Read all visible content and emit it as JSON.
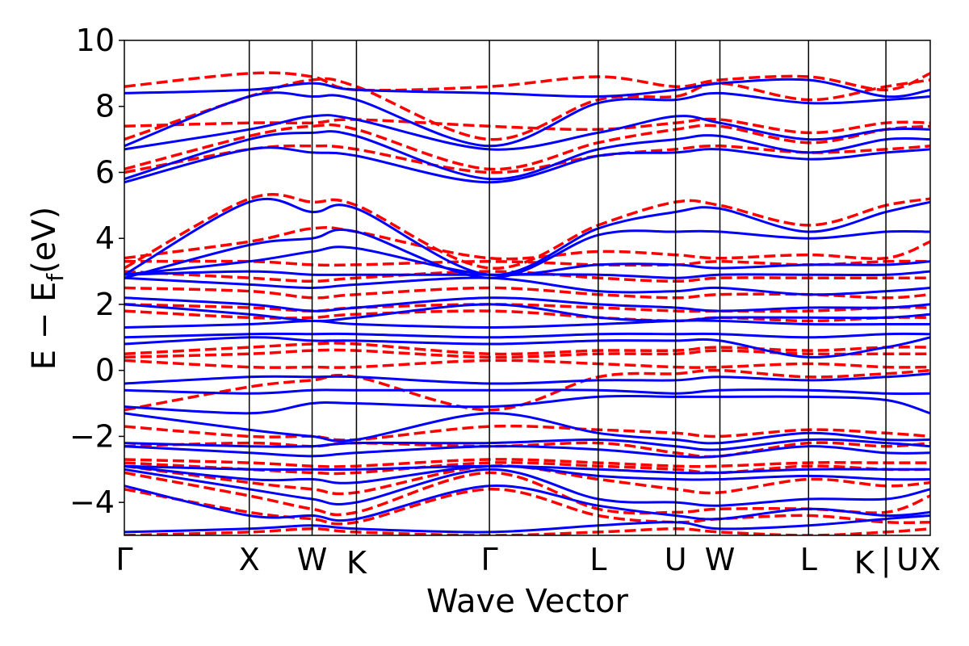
{
  "chart_data": {
    "type": "line",
    "title": "",
    "xlabel": "Wave Vector",
    "ylabel": "E − E",
    "ylabel_subscript": "f",
    "ylabel_unit": "(eV)",
    "ylim": [
      -5,
      10
    ],
    "yticks": [
      10,
      8,
      6,
      4,
      2,
      0,
      -2,
      -4
    ],
    "ytick_labels": [
      "10",
      "8",
      "6",
      "4",
      "2",
      "0",
      "−2",
      "−4"
    ],
    "kpoints": [
      {
        "label": "Γ",
        "x": 0.0
      },
      {
        "label": "X",
        "x": 0.155
      },
      {
        "label": "W",
        "x": 0.233
      },
      {
        "label": "K",
        "x": 0.288
      },
      {
        "label": "Γ",
        "x": 0.453
      },
      {
        "label": "L",
        "x": 0.588
      },
      {
        "label": "U",
        "x": 0.684
      },
      {
        "label": "W",
        "x": 0.739
      },
      {
        "label": "L",
        "x": 0.849
      },
      {
        "label": "K | U",
        "x": 0.945
      },
      {
        "label": "X",
        "x": 1.0
      }
    ],
    "xtick_labels": [
      "Γ",
      "X",
      "W",
      "K",
      "Γ",
      "L",
      "U",
      "W",
      "L",
      "K",
      "|",
      "U",
      "X"
    ],
    "series": [
      {
        "style": "dashed",
        "color": "#ff0000",
        "bands": [
          [
            -5.0,
            -4.9,
            -4.8,
            -4.9,
            -5.0,
            -4.9,
            -4.8,
            -4.9,
            -5.0,
            -4.9,
            -4.8
          ],
          [
            -3.6,
            -4.3,
            -4.5,
            -4.6,
            -3.6,
            -4.4,
            -4.6,
            -4.5,
            -4.4,
            -4.6,
            -4.6
          ],
          [
            -3.1,
            -3.8,
            -4.2,
            -4.3,
            -3.1,
            -4.2,
            -4.3,
            -4.2,
            -4.2,
            -4.3,
            -3.8
          ],
          [
            -2.9,
            -3.4,
            -3.6,
            -3.7,
            -2.9,
            -3.3,
            -3.6,
            -3.7,
            -3.3,
            -3.5,
            -3.4
          ],
          [
            -2.8,
            -3.0,
            -3.1,
            -3.1,
            -2.8,
            -2.9,
            -3.0,
            -3.1,
            -2.9,
            -3.0,
            -3.0
          ],
          [
            -2.7,
            -2.8,
            -2.9,
            -2.9,
            -2.7,
            -2.8,
            -2.9,
            -2.9,
            -2.8,
            -2.8,
            -2.8
          ],
          [
            -2.3,
            -2.2,
            -2.3,
            -2.2,
            -2.3,
            -2.2,
            -2.5,
            -2.6,
            -2.2,
            -2.3,
            -2.2
          ],
          [
            -1.7,
            -2.0,
            -2.0,
            -2.1,
            -1.7,
            -1.8,
            -1.9,
            -2.0,
            -1.8,
            -1.9,
            -2.0
          ],
          [
            -1.2,
            -0.5,
            -0.3,
            -0.2,
            -1.2,
            -0.2,
            -0.1,
            0.0,
            -0.2,
            -0.1,
            0.0
          ],
          [
            0.3,
            0.1,
            0.1,
            0.1,
            0.3,
            0.2,
            0.1,
            0.1,
            0.2,
            0.1,
            0.1
          ],
          [
            0.4,
            0.5,
            0.6,
            0.6,
            0.4,
            0.5,
            0.5,
            0.6,
            0.5,
            0.5,
            0.5
          ],
          [
            0.5,
            0.7,
            0.8,
            0.8,
            0.5,
            0.6,
            0.6,
            0.7,
            0.6,
            0.7,
            0.7
          ],
          [
            1.8,
            1.6,
            1.6,
            1.7,
            1.8,
            1.6,
            1.5,
            1.6,
            1.5,
            1.6,
            1.6
          ],
          [
            2.0,
            1.9,
            1.8,
            1.9,
            2.0,
            1.9,
            1.8,
            1.8,
            1.8,
            1.9,
            1.9
          ],
          [
            2.5,
            2.4,
            2.2,
            2.3,
            2.5,
            2.3,
            2.2,
            2.3,
            2.3,
            2.2,
            2.3
          ],
          [
            3.0,
            2.8,
            2.7,
            2.8,
            3.0,
            2.8,
            2.7,
            2.8,
            2.8,
            2.8,
            2.8
          ],
          [
            3.3,
            3.3,
            3.2,
            3.2,
            3.3,
            3.2,
            3.2,
            3.3,
            3.2,
            3.3,
            3.3
          ],
          [
            3.4,
            3.9,
            4.3,
            4.2,
            3.4,
            3.6,
            3.5,
            3.4,
            3.5,
            3.4,
            3.9
          ],
          [
            3.1,
            5.2,
            5.1,
            5.0,
            3.1,
            4.4,
            5.1,
            5.0,
            4.4,
            5.0,
            5.2
          ],
          [
            6.0,
            6.7,
            6.8,
            6.7,
            6.0,
            6.5,
            6.7,
            6.8,
            6.6,
            6.7,
            6.8
          ],
          [
            6.1,
            7.1,
            7.4,
            7.3,
            6.1,
            6.9,
            7.3,
            7.4,
            6.9,
            7.3,
            7.4
          ],
          [
            7.4,
            7.5,
            7.5,
            7.6,
            7.4,
            7.3,
            7.5,
            7.6,
            7.2,
            7.5,
            7.5
          ],
          [
            7.0,
            8.3,
            8.8,
            8.6,
            7.0,
            8.2,
            8.3,
            8.7,
            8.2,
            8.6,
            8.8
          ],
          [
            8.6,
            9.0,
            8.9,
            8.5,
            8.6,
            8.9,
            8.6,
            8.8,
            8.9,
            8.5,
            9.0
          ]
        ]
      },
      {
        "style": "solid",
        "color": "#0000ff",
        "bands": [
          [
            -4.9,
            -4.8,
            -4.7,
            -4.8,
            -4.9,
            -4.7,
            -4.6,
            -4.8,
            -4.7,
            -4.5,
            -4.4
          ],
          [
            -3.5,
            -4.4,
            -4.4,
            -4.5,
            -3.5,
            -4.1,
            -4.4,
            -4.5,
            -4.2,
            -4.4,
            -4.3
          ],
          [
            -3.0,
            -3.6,
            -3.9,
            -4.0,
            -3.0,
            -3.9,
            -4.0,
            -4.1,
            -3.9,
            -3.9,
            -3.6
          ],
          [
            -2.9,
            -3.3,
            -3.3,
            -3.4,
            -2.9,
            -3.2,
            -3.3,
            -3.3,
            -3.2,
            -3.3,
            -3.3
          ],
          [
            -2.9,
            -3.0,
            -3.0,
            -3.0,
            -2.9,
            -3.0,
            -3.1,
            -3.1,
            -3.0,
            -3.0,
            -3.0
          ],
          [
            -2.3,
            -2.5,
            -2.6,
            -2.5,
            -2.3,
            -2.4,
            -2.6,
            -2.6,
            -2.3,
            -2.5,
            -2.5
          ],
          [
            -2.2,
            -2.3,
            -2.3,
            -2.2,
            -2.2,
            -2.1,
            -2.3,
            -2.4,
            -2.1,
            -2.2,
            -2.3
          ],
          [
            -1.3,
            -1.8,
            -2.0,
            -2.1,
            -1.3,
            -1.9,
            -2.1,
            -2.2,
            -1.9,
            -2.1,
            -2.1
          ],
          [
            -1.1,
            -1.3,
            -1.0,
            -1.0,
            -1.1,
            -0.8,
            -0.8,
            -0.8,
            -0.8,
            -0.9,
            -1.3
          ],
          [
            -0.6,
            -0.7,
            -0.6,
            -0.6,
            -0.6,
            -0.6,
            -0.7,
            -0.6,
            -0.6,
            -0.7,
            -0.7
          ],
          [
            -0.4,
            -0.2,
            -0.2,
            -0.2,
            -0.4,
            -0.3,
            -0.3,
            -0.2,
            -0.3,
            -0.2,
            -0.1
          ],
          [
            0.8,
            1.0,
            0.9,
            0.9,
            0.8,
            0.9,
            0.9,
            0.9,
            0.4,
            0.7,
            1.0
          ],
          [
            1.0,
            1.1,
            1.1,
            1.1,
            1.0,
            1.1,
            1.1,
            1.1,
            1.0,
            1.1,
            1.1
          ],
          [
            1.3,
            1.4,
            1.5,
            1.4,
            1.3,
            1.4,
            1.5,
            1.5,
            1.4,
            1.4,
            1.4
          ],
          [
            2.0,
            1.7,
            1.5,
            1.6,
            2.0,
            1.6,
            1.5,
            1.6,
            1.6,
            1.6,
            1.7
          ],
          [
            2.2,
            2.0,
            1.8,
            1.9,
            2.2,
            2.0,
            1.9,
            1.8,
            1.9,
            1.9,
            2.0
          ],
          [
            2.8,
            2.6,
            2.5,
            2.6,
            2.8,
            2.4,
            2.4,
            2.5,
            2.3,
            2.4,
            2.5
          ],
          [
            2.9,
            3.0,
            2.9,
            2.9,
            2.9,
            2.9,
            2.8,
            2.9,
            2.9,
            2.9,
            3.0
          ],
          [
            2.9,
            3.3,
            3.6,
            3.7,
            2.9,
            3.2,
            3.2,
            3.1,
            3.2,
            3.2,
            3.3
          ],
          [
            2.8,
            3.8,
            4.0,
            4.2,
            2.8,
            4.1,
            4.2,
            4.2,
            4.0,
            4.2,
            4.2
          ],
          [
            2.9,
            5.1,
            4.8,
            4.9,
            2.9,
            4.3,
            4.8,
            4.9,
            4.2,
            4.8,
            5.1
          ],
          [
            5.7,
            6.7,
            6.6,
            6.5,
            5.7,
            6.5,
            6.6,
            6.7,
            6.4,
            6.6,
            6.7
          ],
          [
            5.8,
            7.0,
            7.2,
            7.1,
            5.8,
            6.7,
            7.0,
            7.1,
            6.6,
            7.0,
            7.0
          ],
          [
            6.7,
            7.3,
            7.7,
            7.6,
            6.7,
            7.2,
            7.7,
            7.5,
            7.0,
            7.3,
            7.3
          ],
          [
            6.8,
            8.3,
            8.3,
            8.2,
            6.8,
            8.1,
            8.2,
            8.4,
            8.1,
            8.2,
            8.3
          ],
          [
            8.4,
            8.5,
            8.7,
            8.5,
            8.4,
            8.3,
            8.5,
            8.7,
            8.8,
            8.3,
            8.5
          ]
        ]
      }
    ]
  }
}
